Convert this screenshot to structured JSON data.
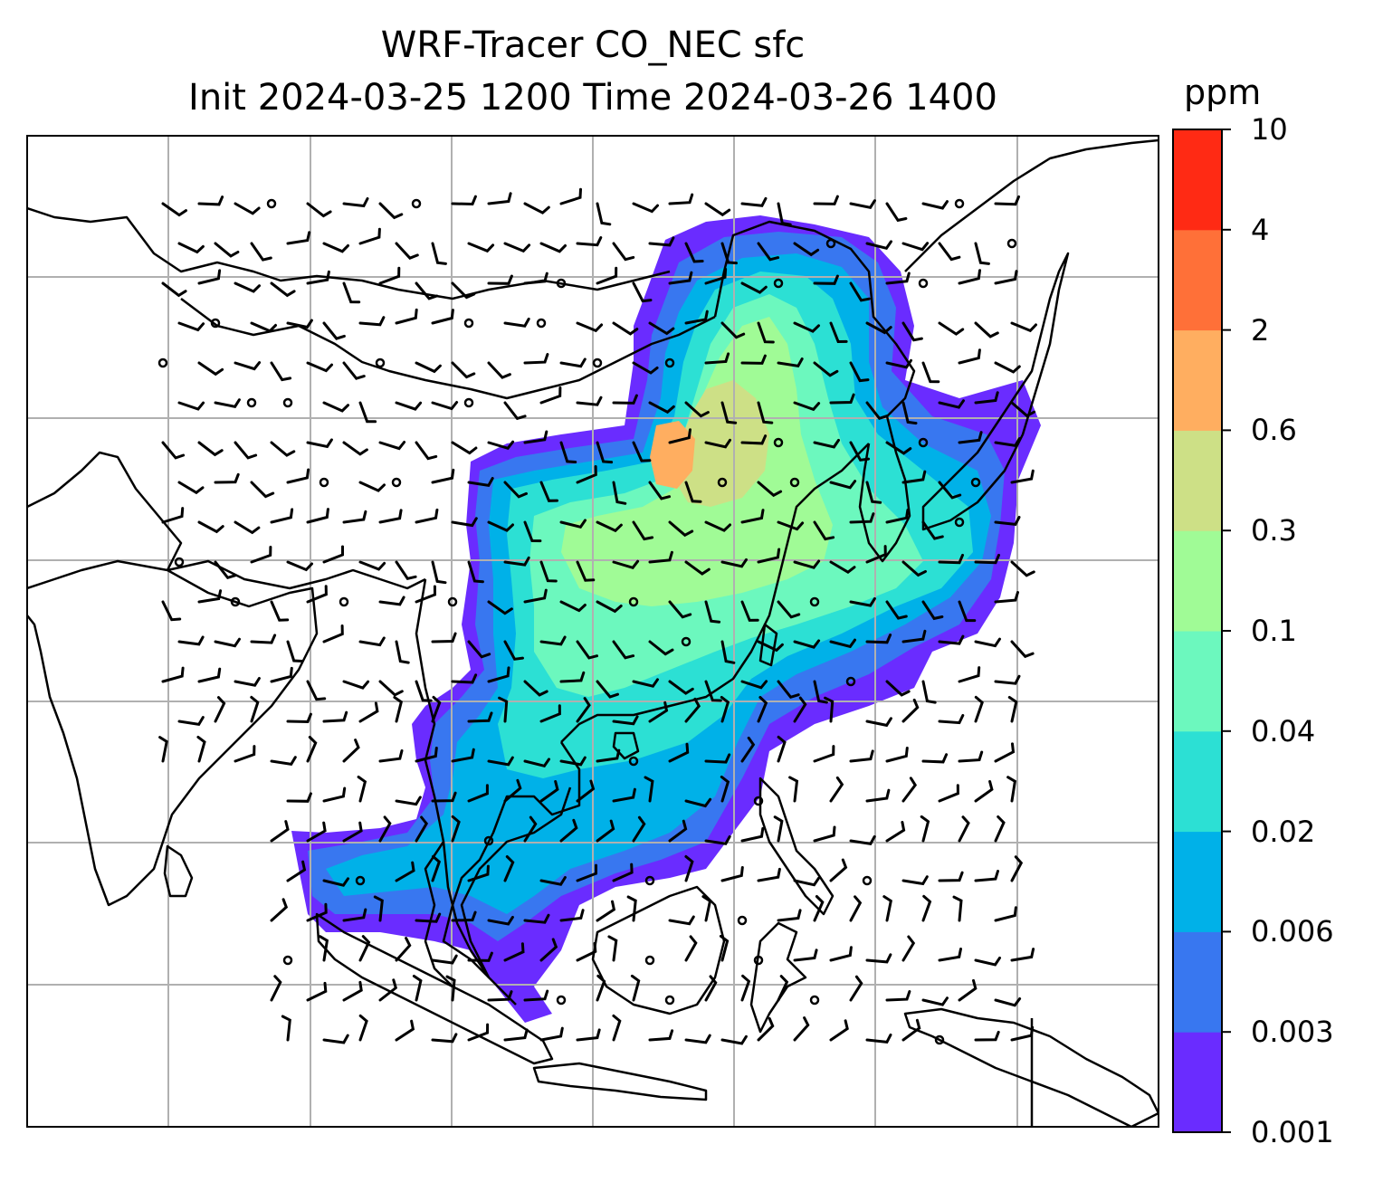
{
  "title": {
    "line1": "WRF-Tracer CO_NEC sfc",
    "line2": "Init 2024-03-25 1200 Time 2024-03-26 1400"
  },
  "colorbar": {
    "unit": "ppm",
    "levels": [
      "0.001",
      "0.003",
      "0.006",
      "0.02",
      "0.04",
      "0.1",
      "0.3",
      "0.6",
      "2",
      "4",
      "10"
    ],
    "colors": [
      "#6a2cff",
      "#3877f0",
      "#00b1e8",
      "#2ce0d4",
      "#6cf8be",
      "#a0fb96",
      "#cde086",
      "#ffae60",
      "#ff7038",
      "#ff2a14"
    ]
  },
  "map": {
    "coastline_color": "#000000",
    "gridline_color": "#b0b0b0",
    "field": "CO_NEC surface tracer concentration with wind barbs"
  }
}
